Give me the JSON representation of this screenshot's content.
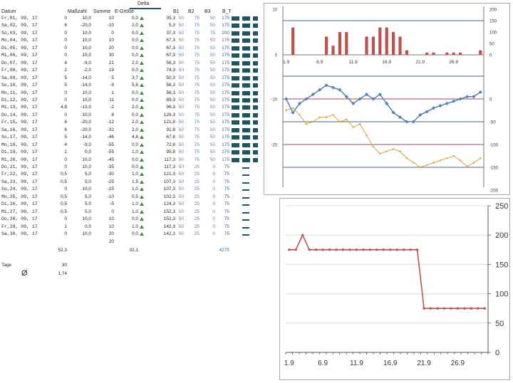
{
  "sheet": {
    "headers": {
      "datum": "Datum",
      "masszahl": "Maßzahl",
      "summe": "Summe",
      "egroesse": "E-Größe",
      "delta": "Delta",
      "b1": "B1",
      "b2": "B2",
      "b3": "B3",
      "bt": "B_T"
    },
    "rows": [
      {
        "date": "Fr,01, 09, 17",
        "a": "0",
        "m": "10,0",
        "s": "10",
        "e": "0,0",
        "d": "35,3",
        "b1": "50",
        "b2": "75",
        "b3": "50",
        "bt": "175",
        "trend": "up",
        "big": true
      },
      {
        "date": "Sa,02, 09, 17",
        "a": "6",
        "m": "-20,0",
        "s": "-10",
        "e": "2,0",
        "d": "5,3",
        "b1": "50",
        "b2": "75",
        "b3": "50",
        "bt": "175",
        "trend": "up",
        "big": true
      },
      {
        "date": "So,03, 09, 17",
        "a": "0",
        "m": "10,0",
        "s": "0",
        "e": "0,0",
        "d": "37,3",
        "b1": "50",
        "b2": "75",
        "b3": "75",
        "bt": "200",
        "trend": "up",
        "big": true
      },
      {
        "date": "Mo,04, 09, 17",
        "a": "0",
        "m": "10,0",
        "s": "10",
        "e": "0,0",
        "d": "67,3",
        "b1": "50",
        "b2": "75",
        "b3": "50",
        "bt": "175",
        "trend": "up",
        "big": true
      },
      {
        "date": "Di,05, 09, 17",
        "a": "0",
        "m": "10,0",
        "s": "20",
        "e": "0,0",
        "d": "67,3",
        "b1": "50",
        "b2": "75",
        "b3": "50",
        "bt": "175",
        "trend": "up",
        "big": true
      },
      {
        "date": "Mi,06, 09, 17",
        "a": "0",
        "m": "10,0",
        "s": "30",
        "e": "0,0",
        "d": "67,3",
        "b1": "50",
        "b2": "75",
        "b3": "50",
        "bt": "175",
        "trend": "up",
        "big": true
      },
      {
        "date": "Do,07, 09, 17",
        "a": "4",
        "m": "-9,0",
        "s": "21",
        "e": "2,0",
        "d": "56,3",
        "b1": "50",
        "b2": "75",
        "b3": "50",
        "bt": "175",
        "trend": "up",
        "big": true
      },
      {
        "date": "Fr,08, 09, 17",
        "a": "2",
        "m": "-2,0",
        "s": "19",
        "e": "0,0",
        "d": "74,3",
        "b1": "50",
        "b2": "75",
        "b3": "50",
        "bt": "175",
        "trend": "up",
        "big": true
      },
      {
        "date": "Sa,09, 09, 17",
        "a": "5",
        "m": "-14,0",
        "s": "5",
        "e": "3,7",
        "d": "50,3",
        "b1": "50",
        "b2": "75",
        "b3": "50",
        "bt": "175",
        "trend": "up",
        "big": true
      },
      {
        "date": "So,10, 09, 17",
        "a": "5",
        "m": "-14,0",
        "s": "-9",
        "e": "5,6",
        "d": "56,3",
        "b1": "50",
        "b2": "75",
        "b3": "50",
        "bt": "175",
        "trend": "up",
        "big": true
      },
      {
        "date": "Mo,11, 09, 17",
        "a": "0",
        "m": "10,0",
        "s": "1",
        "e": "0,0",
        "d": "56,3",
        "b1": "50",
        "b2": "75",
        "b3": "50",
        "bt": "175",
        "trend": "up",
        "big": true
      },
      {
        "date": "Di,12, 09, 17",
        "a": "0",
        "m": "10,0",
        "s": "11",
        "e": "0,0",
        "d": "89,3",
        "b1": "50",
        "b2": "75",
        "b3": "50",
        "bt": "175",
        "trend": "up",
        "big": true
      },
      {
        "date": "Mi,13, 09, 17",
        "a": "4,8",
        "m": "-13,0",
        "s": "-2",
        "e": "2,0",
        "d": "96,3",
        "b1": "50",
        "b2": "75",
        "b3": "50",
        "bt": "175",
        "trend": "up",
        "big": true
      },
      {
        "date": "Do,14, 09, 17",
        "a": "0",
        "m": "10,0",
        "s": "8",
        "e": "0,0",
        "d": "126,3",
        "b1": "50",
        "b2": "75",
        "b3": "50",
        "bt": "175",
        "trend": "up",
        "big": true
      },
      {
        "date": "Fr,15, 09, 17",
        "a": "6",
        "m": "-20,0",
        "s": "-12",
        "e": "2,0",
        "d": "121,8",
        "b1": "50",
        "b2": "75",
        "b3": "50",
        "bt": "175",
        "trend": "up",
        "big": true
      },
      {
        "date": "Sa,16, 09, 17",
        "a": "6",
        "m": "-20,0",
        "s": "-32",
        "e": "2,0",
        "d": "91,8",
        "b1": "50",
        "b2": "75",
        "b3": "50",
        "bt": "175",
        "trend": "up",
        "big": true
      },
      {
        "date": "So,17, 09, 17",
        "a": "5",
        "m": "-14,0",
        "s": "-46",
        "e": "4,8",
        "d": "67,8",
        "b1": "50",
        "b2": "75",
        "b3": "50",
        "bt": "175",
        "trend": "up",
        "big": true
      },
      {
        "date": "Mo,18, 09, 17",
        "a": "4",
        "m": "-9,0",
        "s": "-55",
        "e": "0,0",
        "d": "72,8",
        "b1": "50",
        "b2": "75",
        "b3": "50",
        "bt": "175",
        "trend": "up",
        "big": true
      },
      {
        "date": "Di,19, 09, 17",
        "a": "1",
        "m": "0,0",
        "s": "-55",
        "e": "1,0",
        "d": "95,8",
        "b1": "50",
        "b2": "75",
        "b3": "50",
        "bt": "175",
        "trend": "up",
        "big": true
      },
      {
        "date": "Mi,20, 09, 17",
        "a": "0",
        "m": "10,0",
        "s": "-45",
        "e": "0,0",
        "d": "117,3",
        "b1": "50",
        "b2": "75",
        "b3": "50",
        "bt": "175",
        "trend": "up",
        "big": true
      },
      {
        "date": "Do,21, 09, 17",
        "a": "0",
        "m": "10,0",
        "s": "-35",
        "e": "0,0",
        "d": "117,3",
        "b1": "50",
        "b2": "25",
        "b3": "0",
        "bt": "75",
        "trend": "up",
        "big": false
      },
      {
        "date": "Fr,22, 09, 17",
        "a": "0,5",
        "m": "5,0",
        "s": "-30",
        "e": "1,0",
        "d": "121,3",
        "b1": "50",
        "b2": "25",
        "b3": "0",
        "bt": "75",
        "trend": "up",
        "big": false
      },
      {
        "date": "Sa,23, 09, 17",
        "a": "0,5",
        "m": "5,0",
        "s": "-25",
        "e": "1,5",
        "d": "107,3",
        "b1": "50",
        "b2": "25",
        "b3": "0",
        "bt": "75",
        "trend": "up",
        "big": false
      },
      {
        "date": "So,24, 09, 17",
        "a": "0",
        "m": "10,0",
        "s": "-15",
        "e": "1,0",
        "d": "107,3",
        "b1": "50",
        "b2": "25",
        "b3": "0",
        "bt": "75",
        "trend": "up",
        "big": false
      },
      {
        "date": "Mo,25, 09, 17",
        "a": "0,5",
        "m": "5,0",
        "s": "-10",
        "e": "0,5",
        "d": "102,3",
        "b1": "50",
        "b2": "25",
        "b3": "0",
        "bt": "75",
        "trend": "up",
        "big": false
      },
      {
        "date": "Di,26, 09, 17",
        "a": "0,5",
        "m": "5,0",
        "s": "-5",
        "e": "1,0",
        "d": "124,3",
        "b1": "50",
        "b2": "25",
        "b3": "0",
        "bt": "75",
        "trend": "up",
        "big": false
      },
      {
        "date": "Mi,27, 09, 17",
        "a": "0,5",
        "m": "5,0",
        "s": "0",
        "e": "1,0",
        "d": "152,3",
        "b1": "50",
        "b2": "25",
        "b3": "0",
        "bt": "75",
        "trend": "up",
        "big": false
      },
      {
        "date": "Do,28, 09, 17",
        "a": "0",
        "m": "10,0",
        "s": "10",
        "e": "0,0",
        "d": "152,3",
        "b1": "50",
        "b2": "25",
        "b3": "0",
        "bt": "75",
        "trend": "up",
        "big": false
      },
      {
        "date": "Fr,29, 09, 17",
        "a": "1",
        "m": "0,0",
        "s": "10",
        "e": "1,0",
        "d": "142,3",
        "b1": "50",
        "b2": "25",
        "b3": "0",
        "bt": "75",
        "trend": "up",
        "big": false
      },
      {
        "date": "Sa,30, 09, 17",
        "a": "0",
        "m": "10,0",
        "s": "20",
        "e": "0,0",
        "d": "142,3",
        "b1": "50",
        "b2": "25",
        "b3": "0",
        "bt": "75",
        "trend": "up",
        "big": false
      }
    ],
    "extra_summe": "20",
    "totals": {
      "col_a": "52,3",
      "col_e": "32,1",
      "col_bt": "4275"
    },
    "tage_label": "Tage",
    "tage_value": "30",
    "avg_symbol": "Ø",
    "avg_value": "1,74"
  },
  "colors": {
    "bar_red": "#c0504d",
    "line_blue": "#4f81bd",
    "line_orange": "#e0a030",
    "grid_blue": "#3d6587",
    "grid_red": "#a44a47",
    "data_bar": "#1d5660",
    "trend_green": "#3d8c3d"
  },
  "chart_data": [
    {
      "type": "bar+line",
      "x_tick_labels": [
        "1.9",
        "6.9",
        "11.9",
        "16.9",
        "21.9",
        "26.9"
      ],
      "bars": {
        "left_axis_ticks": [
          "10",
          "0"
        ],
        "right_axis_ticks": [
          "200",
          "150",
          "100",
          "50",
          "0"
        ],
        "values_right_axis": [
          0,
          120,
          0,
          0,
          0,
          0,
          80,
          40,
          100,
          100,
          0,
          0,
          80,
          80,
          120,
          120,
          100,
          80,
          20,
          0,
          0,
          10,
          10,
          0,
          10,
          10,
          10,
          0,
          0,
          20
        ]
      },
      "lines": {
        "left_axis_ticks": [
          "-10",
          "-20"
        ],
        "right_axis_ticks": [
          "0",
          "-50",
          "-100",
          "-150",
          "-200"
        ],
        "blue_values": [
          -10,
          -13,
          -11,
          -10,
          -9,
          -8,
          -7,
          -7.5,
          -8,
          -9.5,
          -11,
          -10,
          -9,
          -10,
          -9,
          -11,
          -13,
          -14,
          -15,
          -15,
          -13.5,
          -12.8,
          -12,
          -11.5,
          -11,
          -10.5,
          -10,
          -9.5,
          -9.5,
          -8.5
        ],
        "orange_values": [
          -12.5,
          -12,
          -13.5,
          -15.5,
          -15,
          -14,
          -14,
          -13.5,
          -15,
          -14.5,
          -16.2,
          -15.5,
          -18,
          -20.5,
          -22,
          -21.5,
          -21,
          -21.5,
          -23,
          -24,
          -25,
          -24.5,
          -24,
          -23.5,
          -23,
          -22.5,
          -23.5,
          -24.8,
          -24,
          -23
        ]
      }
    },
    {
      "type": "line",
      "x_tick_labels": [
        "1.9",
        "6.9",
        "11.9",
        "16.9",
        "21.9",
        "26.9"
      ],
      "y_tick_labels": [
        "250",
        "200",
        "150",
        "100",
        "50",
        "0"
      ],
      "ylim": [
        0,
        250
      ],
      "values": [
        175,
        175,
        200,
        175,
        175,
        175,
        175,
        175,
        175,
        175,
        175,
        175,
        175,
        175,
        175,
        175,
        175,
        175,
        175,
        175,
        75,
        75,
        75,
        75,
        75,
        75,
        75,
        75,
        75,
        75
      ]
    }
  ]
}
